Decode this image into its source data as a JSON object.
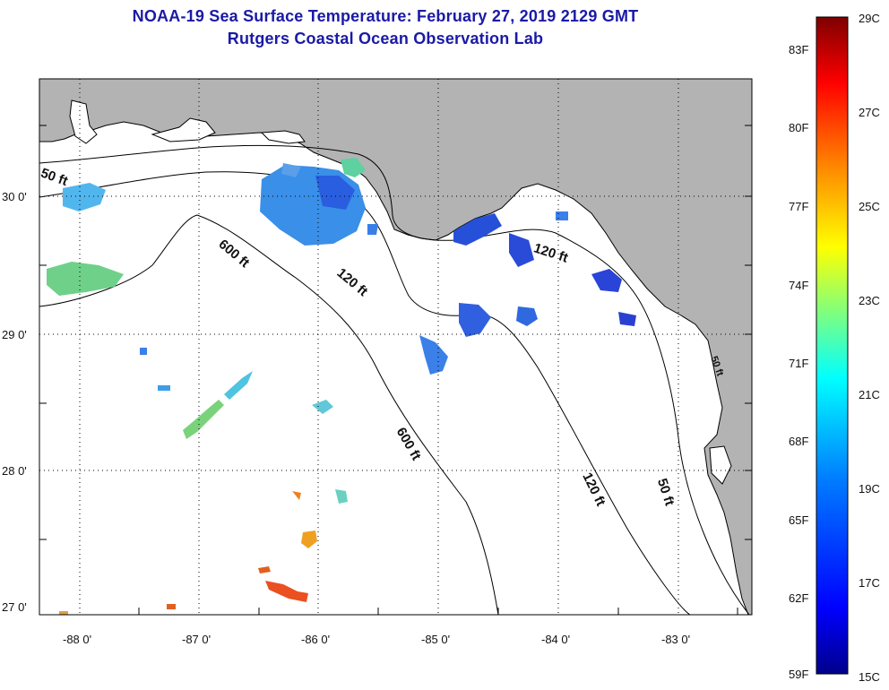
{
  "title": {
    "line1": "NOAA-19 Sea Surface Temperature:  February 27, 2019 2129 GMT",
    "line2": "Rutgers Coastal Ocean Observation Lab"
  },
  "map": {
    "lat_labels": [
      "30 0'",
      "29 0'",
      "28 0'",
      "27 0'"
    ],
    "lon_labels": [
      "-88 0'",
      "-87 0'",
      "-86 0'",
      "-85 0'",
      "-84 0'",
      "-83 0'"
    ],
    "contour_labels": [
      "50 ft",
      "600 ft",
      "120 ft",
      "600 ft",
      "120 ft",
      "50 ft",
      "120 ft",
      "50 ft"
    ],
    "colors": {
      "land": "#b3b3b3",
      "ocean": "#ffffff",
      "graticule": "#000000"
    }
  },
  "colorbar": {
    "fahrenheit_labels": [
      "83F",
      "80F",
      "77F",
      "74F",
      "71F",
      "68F",
      "65F",
      "62F",
      "59F"
    ],
    "celsius_labels": [
      "29C",
      "27C",
      "25C",
      "23C",
      "21C",
      "19C",
      "17C",
      "15C"
    ],
    "range_c": [
      15,
      29
    ],
    "palette": [
      "#00008b",
      "#0000ff",
      "#007fff",
      "#00ffff",
      "#7fff7f",
      "#ffff00",
      "#ff7f00",
      "#ff0000",
      "#7f0000"
    ]
  }
}
